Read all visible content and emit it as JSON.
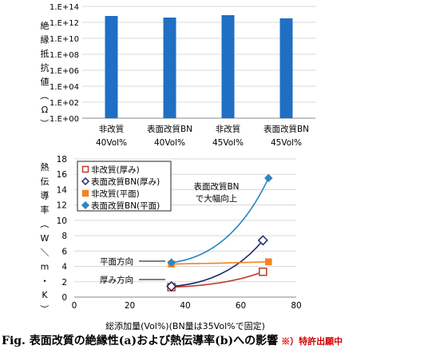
{
  "charts": {
    "a": {
      "type": "bar",
      "ylabel": "絶縁抵抗値（Ω）",
      "ytick_labels": [
        "1.E+00",
        "1.E+02",
        "1.E+04",
        "1.E+06",
        "1.E+08",
        "1.E+10",
        "1.E+12",
        "1.E+14"
      ],
      "categories": [
        [
          "非改質",
          "40Vol%"
        ],
        [
          "表面改質BN",
          "40Vol%"
        ],
        [
          "非改質",
          "45Vol%"
        ],
        [
          "表面改質BN",
          "45Vol%"
        ]
      ],
      "log_values": [
        12.8,
        12.6,
        12.9,
        12.5
      ],
      "color": "#1f6fc4"
    },
    "b": {
      "type": "scatter",
      "ylabel": "熱伝導率（W／m・K）",
      "xlabel": "総添加量(Vol%)(BN量は35Vol%で固定)",
      "xlim": [
        0,
        80
      ],
      "ylim": [
        0,
        18
      ],
      "xticks": [
        0,
        20,
        40,
        60,
        80
      ],
      "yticks": [
        0,
        2,
        4,
        6,
        8,
        10,
        12,
        14,
        16,
        18
      ],
      "series": [
        {
          "name": "非改質(厚み)",
          "marker": "square-open",
          "color": "#c0392b",
          "x": [
            35,
            68
          ],
          "y": [
            1.3,
            3.3
          ]
        },
        {
          "name": "表面改質BN(厚み)",
          "marker": "diamond-open",
          "color": "#1a2a6c",
          "x": [
            35,
            68
          ],
          "y": [
            1.4,
            7.4
          ]
        },
        {
          "name": "非改質(平面)",
          "marker": "square",
          "color": "#f58220",
          "x": [
            35,
            70
          ],
          "y": [
            4.3,
            4.6
          ]
        },
        {
          "name": "表面改質BN(平面)",
          "marker": "diamond",
          "color": "#2e86c1",
          "x": [
            35,
            70
          ],
          "y": [
            4.5,
            15.5
          ]
        }
      ],
      "annotations": [
        {
          "id": "improve",
          "lines": [
            "表面改質BN",
            "で大幅向上"
          ]
        },
        {
          "id": "planar",
          "lines": [
            "平面方向"
          ]
        },
        {
          "id": "thick",
          "lines": [
            "厚み方向"
          ]
        }
      ]
    }
  },
  "caption": {
    "main": "Fig. 表面改質の絶縁性(a)および熱伝導率(b)への影響",
    "note": "※）特許出願中"
  }
}
